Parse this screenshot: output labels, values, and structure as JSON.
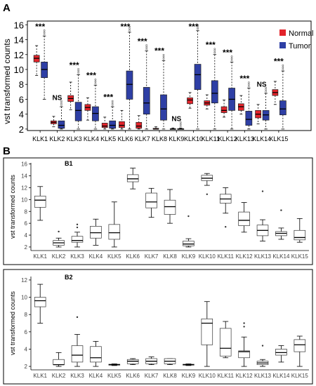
{
  "panel_labels": {
    "a": "A",
    "b": "B"
  },
  "chart_data": [
    {
      "type": "box",
      "panel": "A",
      "ylabel": "vst transformed counts",
      "yticks": [
        2,
        4,
        6,
        8,
        10,
        12,
        14,
        16
      ],
      "ylim": [
        1.8,
        16.5
      ],
      "categories": [
        "KLK1",
        "KLK2",
        "KLK3",
        "KLK4",
        "KLK5",
        "KLK6",
        "KLK7",
        "KLK8",
        "KLK9",
        "KLK10",
        "KLK11",
        "KLK12",
        "KLK13",
        "KLK14",
        "KLK15"
      ],
      "significance": [
        "***",
        "NS",
        "***",
        "***",
        "***",
        "***",
        "***",
        "***",
        "NS",
        "***",
        "***",
        "***",
        "***",
        "NS",
        "***"
      ],
      "legend": {
        "position": "top-right",
        "labels": [
          "Normal",
          "Tumor"
        ],
        "colors": [
          "#e3242b",
          "#2e3fa5"
        ]
      },
      "series": [
        {
          "name": "Normal",
          "color": "#e3242b",
          "boxes": [
            {
              "min": 9.2,
              "q1": 11.0,
              "median": 11.5,
              "q3": 11.9,
              "max": 13.2
            },
            {
              "min": 2.3,
              "q1": 2.7,
              "median": 2.9,
              "q3": 3.1,
              "max": 3.7
            },
            {
              "min": 4.6,
              "q1": 5.7,
              "median": 6.1,
              "q3": 6.5,
              "max": 8.3
            },
            {
              "min": 3.2,
              "q1": 4.5,
              "median": 4.9,
              "q3": 5.3,
              "max": 6.2
            },
            {
              "min": 2.0,
              "q1": 2.2,
              "median": 2.4,
              "q3": 2.8,
              "max": 3.6
            },
            {
              "min": 2.0,
              "q1": 2.2,
              "median": 2.5,
              "q3": 3.0,
              "max": 4.5
            },
            {
              "min": 2.0,
              "q1": 2.1,
              "median": 2.4,
              "q3": 2.9,
              "max": 3.8
            },
            {
              "min": 2.0,
              "q1": 2.0,
              "median": 2.0,
              "q3": 2.1,
              "max": 2.3
            },
            {
              "min": 2.0,
              "q1": 2.0,
              "median": 2.0,
              "q3": 2.05,
              "max": 2.15
            },
            {
              "min": 4.8,
              "q1": 5.4,
              "median": 5.9,
              "q3": 6.2,
              "max": 6.9
            },
            {
              "min": 4.7,
              "q1": 5.2,
              "median": 5.5,
              "q3": 5.8,
              "max": 6.6
            },
            {
              "min": 3.6,
              "q1": 4.2,
              "median": 4.5,
              "q3": 5.0,
              "max": 5.9
            },
            {
              "min": 4.0,
              "q1": 4.5,
              "median": 5.0,
              "q3": 5.4,
              "max": 6.5
            },
            {
              "min": 2.7,
              "q1": 3.5,
              "median": 4.0,
              "q3": 4.5,
              "max": 5.3
            },
            {
              "min": 5.3,
              "q1": 6.5,
              "median": 6.9,
              "q3": 7.3,
              "max": 8.4
            }
          ]
        },
        {
          "name": "Tumor",
          "color": "#2e3fa5",
          "boxes": [
            {
              "min": 6.0,
              "q1": 8.9,
              "median": 10.0,
              "q3": 11.0,
              "max": 14.5
            },
            {
              "min": 2.0,
              "q1": 2.1,
              "median": 2.5,
              "q3": 3.1,
              "max": 5.0
            },
            {
              "min": 2.0,
              "q1": 3.1,
              "median": 4.5,
              "q3": 5.6,
              "max": 9.3
            },
            {
              "min": 2.0,
              "q1": 3.1,
              "median": 4.1,
              "q3": 5.0,
              "max": 7.9
            },
            {
              "min": 2.0,
              "q1": 2.1,
              "median": 2.5,
              "q3": 3.1,
              "max": 5.0
            },
            {
              "min": 2.0,
              "q1": 6.0,
              "median": 8.0,
              "q3": 9.8,
              "max": 15.0
            },
            {
              "min": 2.0,
              "q1": 4.0,
              "median": 5.5,
              "q3": 7.6,
              "max": 12.5
            },
            {
              "min": 2.0,
              "q1": 3.2,
              "median": 4.7,
              "q3": 6.6,
              "max": 11.2
            },
            {
              "min": 2.0,
              "q1": 2.0,
              "median": 2.0,
              "q3": 2.05,
              "max": 2.15
            },
            {
              "min": 2.0,
              "q1": 7.3,
              "median": 9.3,
              "q3": 10.7,
              "max": 15.2
            },
            {
              "min": 2.0,
              "q1": 5.5,
              "median": 6.8,
              "q3": 8.5,
              "max": 12.0
            },
            {
              "min": 2.0,
              "q1": 4.5,
              "median": 6.0,
              "q3": 7.5,
              "max": 11.0
            },
            {
              "min": 2.0,
              "q1": 2.5,
              "median": 3.3,
              "q3": 4.4,
              "max": 7.5
            },
            {
              "min": 2.0,
              "q1": 3.2,
              "median": 3.9,
              "q3": 4.5,
              "max": 6.8
            },
            {
              "min": 2.0,
              "q1": 3.9,
              "median": 4.7,
              "q3": 5.8,
              "max": 9.8
            }
          ]
        }
      ]
    },
    {
      "type": "box",
      "panel": "B1",
      "title": "B1",
      "ylabel": "vst transformed counts",
      "yticks": [
        2,
        4,
        6,
        8,
        10,
        12,
        14,
        16
      ],
      "ylim": [
        1.4,
        16.2
      ],
      "categories": [
        "KLK1",
        "KLK2",
        "KLK3",
        "KLK4",
        "KLK5",
        "KLK6",
        "KLK7",
        "KLK8",
        "KLK9",
        "KLK10",
        "KLK11",
        "KLK12",
        "KLK13",
        "KLK14",
        "KLK15"
      ],
      "boxes": [
        {
          "min": 6.5,
          "q1": 8.7,
          "median": 9.9,
          "q3": 10.6,
          "max": 12.2
        },
        {
          "min": 2.0,
          "q1": 2.3,
          "median": 2.7,
          "q3": 3.1,
          "max": 3.5,
          "outliers": [
            4.6
          ]
        },
        {
          "min": 2.0,
          "q1": 2.8,
          "median": 3.1,
          "q3": 3.8,
          "max": 4.5,
          "outliers": [
            5.3,
            5.8
          ]
        },
        {
          "min": 2.3,
          "q1": 3.5,
          "median": 4.4,
          "q3": 5.5,
          "max": 6.7
        },
        {
          "min": 2.0,
          "q1": 3.3,
          "median": 4.4,
          "q3": 5.8,
          "max": 9.6
        },
        {
          "min": 11.8,
          "q1": 13.0,
          "median": 13.5,
          "q3": 14.2,
          "max": 15.3
        },
        {
          "min": 7.0,
          "q1": 8.6,
          "median": 9.6,
          "q3": 11.1,
          "max": 11.9
        },
        {
          "min": 6.0,
          "q1": 7.5,
          "median": 8.8,
          "q3": 9.9,
          "max": 11.7
        },
        {
          "min": 2.0,
          "q1": 2.2,
          "median": 2.5,
          "q3": 3.0,
          "max": 3.4,
          "outliers": [
            7.2
          ]
        },
        {
          "min": 12.4,
          "q1": 13.2,
          "median": 13.6,
          "q3": 14.1,
          "max": 14.4,
          "outliers": [
            10.9
          ]
        },
        {
          "min": 7.7,
          "q1": 9.4,
          "median": 10.1,
          "q3": 10.9,
          "max": 12.0,
          "outliers": [
            5.4
          ]
        },
        {
          "min": 4.5,
          "q1": 5.6,
          "median": 6.5,
          "q3": 7.9,
          "max": 9.5
        },
        {
          "min": 3.0,
          "q1": 3.9,
          "median": 4.8,
          "q3": 5.7,
          "max": 6.6,
          "outliers": [
            11.4
          ]
        },
        {
          "min": 3.3,
          "q1": 3.9,
          "median": 4.3,
          "q3": 4.6,
          "max": 5.2,
          "outliers": [
            8.2
          ]
        },
        {
          "min": 2.8,
          "q1": 3.2,
          "median": 3.6,
          "q3": 4.8,
          "max": 6.8
        }
      ]
    },
    {
      "type": "box",
      "panel": "B2",
      "title": "B2",
      "ylabel": "vst transformed counts",
      "yticks": [
        2,
        4,
        6,
        8,
        10,
        12
      ],
      "ylim": [
        1.6,
        12.4
      ],
      "categories": [
        "KLK1",
        "KLK2",
        "KLK3",
        "KLK4",
        "KLK5",
        "KLK6",
        "KLK7",
        "KLK8",
        "KLK9",
        "KLK10",
        "KLK11",
        "KLK12",
        "KLK13",
        "KLK14",
        "KLK15"
      ],
      "boxes": [
        {
          "min": 7.0,
          "q1": 8.9,
          "median": 9.6,
          "q3": 10.0,
          "max": 11.5
        },
        {
          "min": 2.0,
          "q1": 2.2,
          "median": 2.2,
          "q3": 2.8,
          "max": 3.6
        },
        {
          "min": 2.0,
          "q1": 2.5,
          "median": 3.3,
          "q3": 4.4,
          "max": 5.7,
          "outliers": [
            7.7
          ]
        },
        {
          "min": 2.0,
          "q1": 2.5,
          "median": 3.0,
          "q3": 4.3,
          "max": 4.9
        },
        {
          "min": 2.1,
          "q1": 2.15,
          "median": 2.2,
          "q3": 2.25,
          "max": 2.3
        },
        {
          "min": 2.2,
          "q1": 2.3,
          "median": 2.6,
          "q3": 2.8,
          "max": 2.9
        },
        {
          "min": 2.2,
          "q1": 2.3,
          "median": 2.6,
          "q3": 2.9,
          "max": 3.1
        },
        {
          "min": 2.2,
          "q1": 2.3,
          "median": 2.6,
          "q3": 2.9,
          "max": 2.9
        },
        {
          "min": 2.1,
          "q1": 2.15,
          "median": 2.2,
          "q3": 2.25,
          "max": 2.3
        },
        {
          "min": 2.0,
          "q1": 4.5,
          "median": 7.0,
          "q3": 7.5,
          "max": 9.5
        },
        {
          "min": 3.0,
          "q1": 3.2,
          "median": 4.1,
          "q3": 6.4,
          "max": 7.2
        },
        {
          "min": 2.0,
          "q1": 3.0,
          "median": 3.7,
          "q3": 3.8,
          "max": 5.4,
          "outliers": [
            6.6,
            7.0
          ]
        },
        {
          "min": 2.0,
          "q1": 2.2,
          "median": 2.4,
          "q3": 2.6,
          "max": 2.8,
          "outliers": [
            4.4
          ]
        },
        {
          "min": 2.5,
          "q1": 3.3,
          "median": 3.6,
          "q3": 4.0,
          "max": 4.4
        },
        {
          "min": 2.0,
          "q1": 3.7,
          "median": 4.5,
          "q3": 5.1,
          "max": 5.5
        }
      ]
    }
  ]
}
